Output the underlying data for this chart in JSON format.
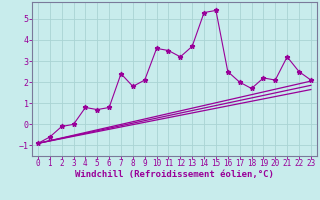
{
  "xlabel": "Windchill (Refroidissement éolien,°C)",
  "bg_color": "#c8ecec",
  "grid_color": "#aad4d4",
  "line_color": "#990099",
  "spine_color": "#7a7a9a",
  "xlim": [
    -0.5,
    23.5
  ],
  "ylim": [
    -1.5,
    5.8
  ],
  "xticks": [
    0,
    1,
    2,
    3,
    4,
    5,
    6,
    7,
    8,
    9,
    10,
    11,
    12,
    13,
    14,
    15,
    16,
    17,
    18,
    19,
    20,
    21,
    22,
    23
  ],
  "yticks": [
    -1,
    0,
    1,
    2,
    3,
    4,
    5
  ],
  "scatter_x": [
    0,
    1,
    2,
    3,
    4,
    5,
    6,
    7,
    8,
    9,
    10,
    11,
    12,
    13,
    14,
    15,
    16,
    17,
    18,
    19,
    20,
    21,
    22,
    23
  ],
  "scatter_y": [
    -0.9,
    -0.6,
    -0.1,
    0.0,
    0.8,
    0.7,
    0.8,
    2.4,
    1.8,
    2.1,
    3.6,
    3.5,
    3.2,
    3.7,
    5.3,
    5.4,
    2.5,
    2.0,
    1.7,
    2.2,
    2.1,
    3.2,
    2.5,
    2.1
  ],
  "line1_x": [
    0,
    23
  ],
  "line1_y": [
    -0.9,
    2.05
  ],
  "line2_x": [
    0,
    23
  ],
  "line2_y": [
    -0.9,
    1.85
  ],
  "line3_x": [
    0,
    23
  ],
  "line3_y": [
    -0.9,
    1.65
  ],
  "xlabel_fontsize": 6.5,
  "tick_fontsize": 5.5
}
